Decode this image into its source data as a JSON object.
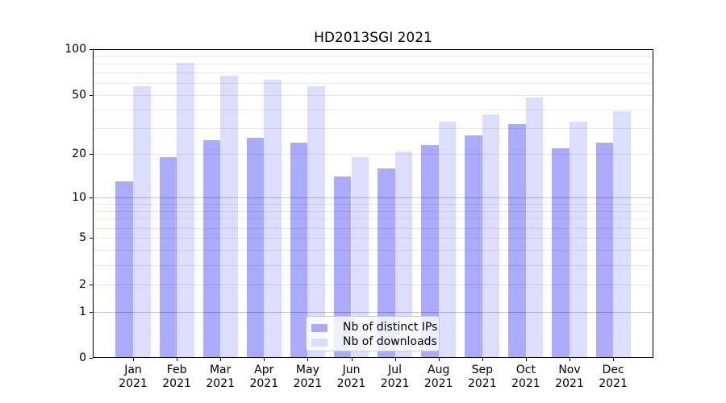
{
  "title": "HD2013SGI 2021",
  "chart_data": {
    "type": "bar",
    "title": "HD2013SGI 2021",
    "categories": [
      "Jan 2021",
      "Feb 2021",
      "Mar 2021",
      "Apr 2021",
      "May 2021",
      "Jun 2021",
      "Jul 2021",
      "Aug 2021",
      "Sep 2021",
      "Oct 2021",
      "Nov 2021",
      "Dec 2021"
    ],
    "series": [
      {
        "name": "Nb of distinct IPs",
        "color": "#aaaaff",
        "values": [
          13,
          19,
          25,
          26,
          24,
          14,
          16,
          23,
          27,
          32,
          22,
          24
        ]
      },
      {
        "name": "Nb of downloads",
        "color": "#ddddff",
        "values": [
          57,
          81,
          67,
          63,
          57,
          19,
          21,
          33,
          37,
          48,
          33,
          39
        ]
      }
    ],
    "xlabel": "",
    "ylabel": "",
    "yscale": "log1p",
    "ylim": [
      0,
      100
    ],
    "yticks": [
      0,
      1,
      2,
      5,
      10,
      20,
      50,
      100
    ],
    "major_grid_values": [
      1,
      10
    ],
    "minor_grid_values": [
      2,
      3,
      4,
      5,
      6,
      7,
      8,
      9,
      20,
      30,
      40,
      50,
      60,
      70,
      80,
      90
    ],
    "grid": "both",
    "legend_position": "lower center"
  }
}
